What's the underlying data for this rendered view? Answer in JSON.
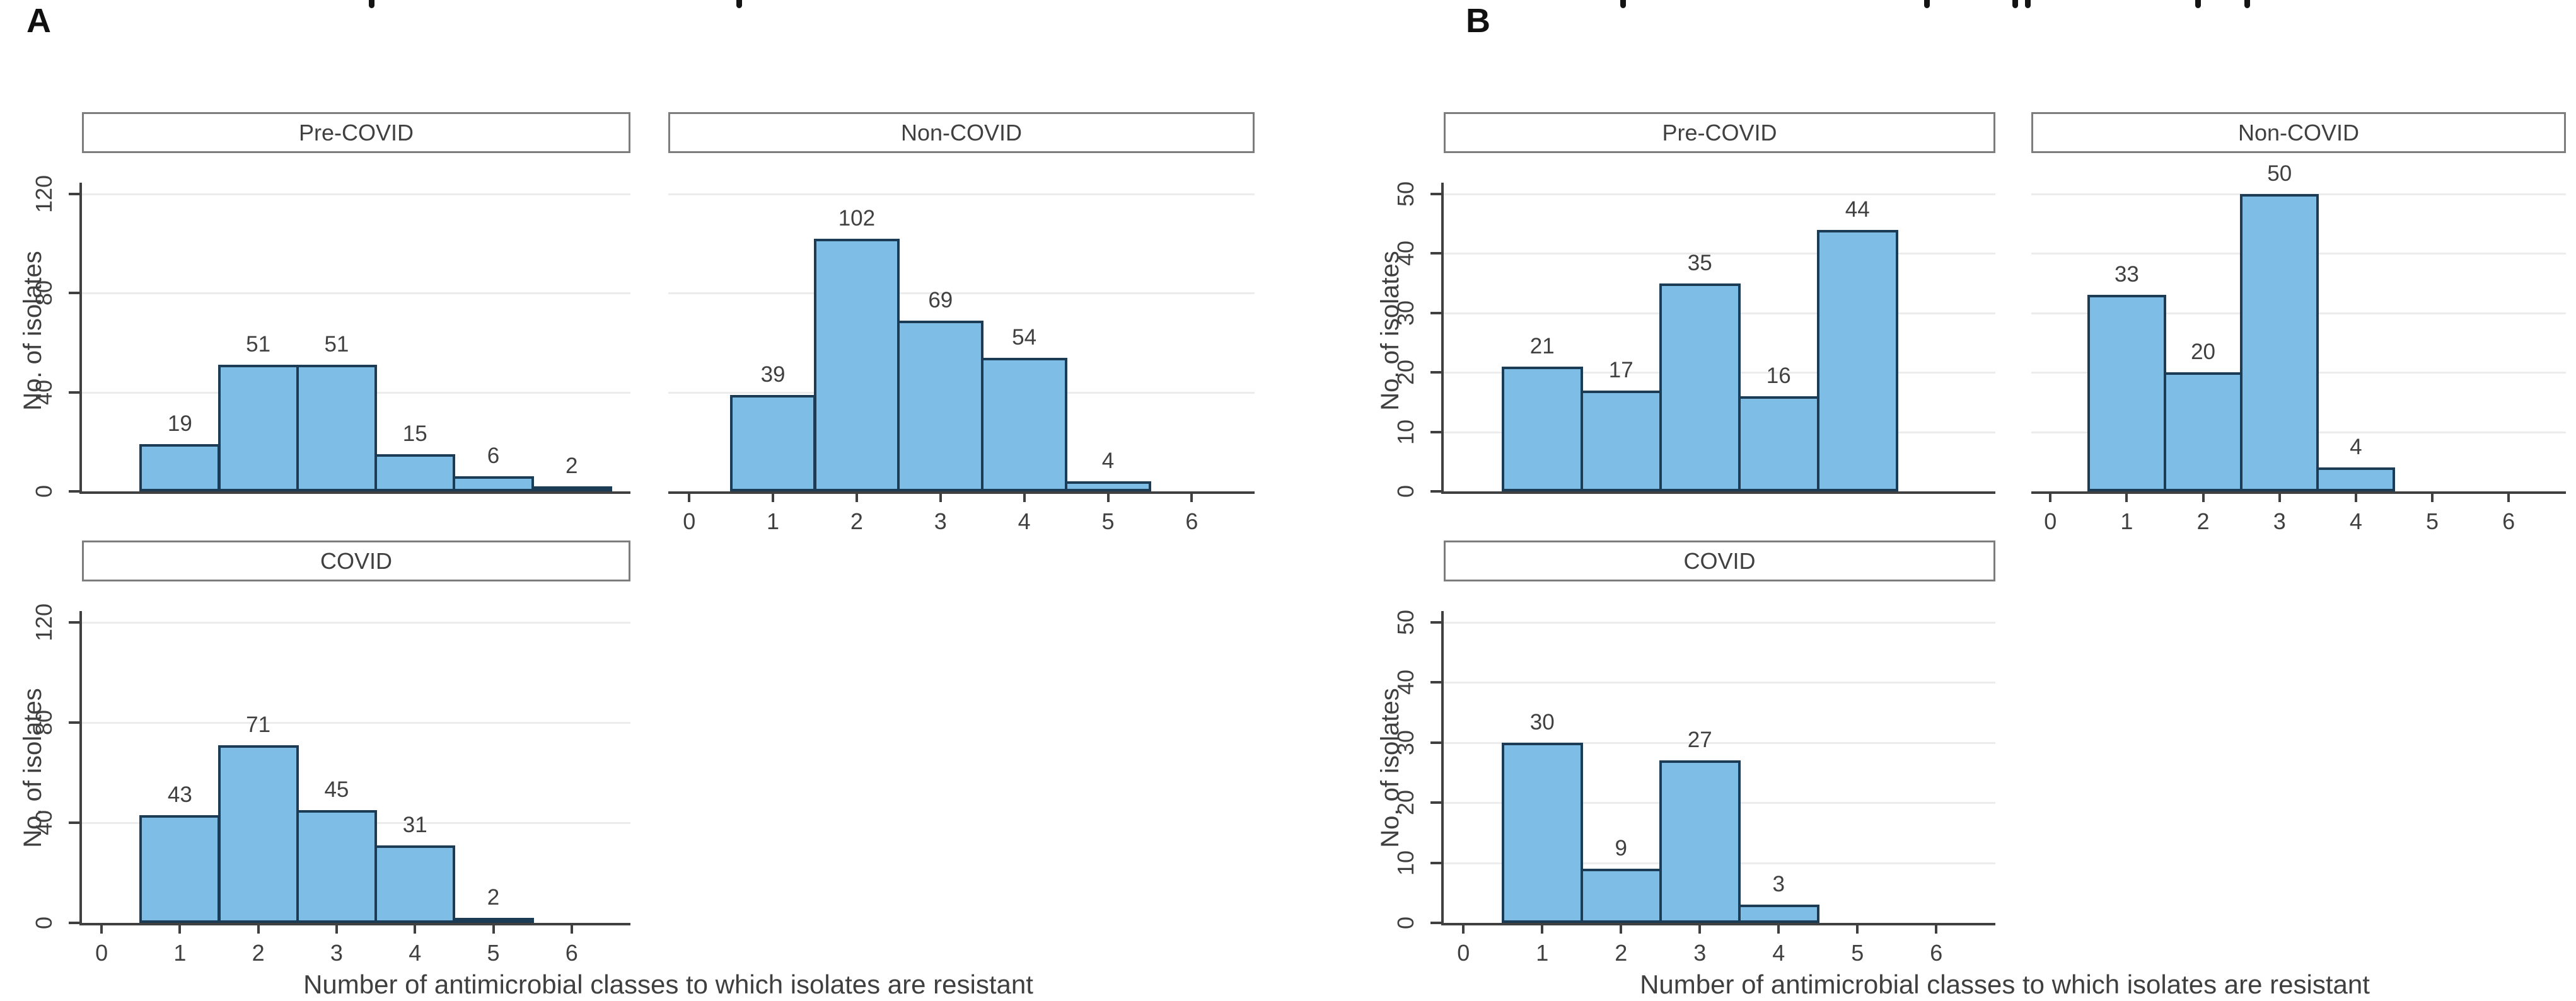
{
  "figure": {
    "background": "#ffffff",
    "top_fragments_note": "illegible remnants of a cropped-off caption line along the top edge",
    "top_fragment_x_positions": [
      585,
      1168,
      2570,
      3052,
      3192,
      3212,
      3482,
      3560
    ]
  },
  "colors": {
    "bar_fill": "#7ebee6",
    "bar_border": "#1c3c55",
    "axis": "#404040",
    "gridline": "#ececec",
    "title_box_border": "#7d7d7d",
    "text": "#404040"
  },
  "chart_data": [
    {
      "panel": "A",
      "type": "bar",
      "title": "",
      "xlabel": "Number of antimicrobial classes to which isolates are resistant",
      "ylabel": "No. of isolates",
      "xticks": [
        0,
        1,
        2,
        3,
        4,
        5,
        6
      ],
      "xlim": [
        -0.25,
        6.75
      ],
      "ylim": [
        0,
        120
      ],
      "yticks": [
        0,
        40,
        80,
        120
      ],
      "grid": true,
      "legend": "none",
      "subplots": [
        {
          "title": "Pre-COVID",
          "categories": [
            1,
            2,
            3,
            4,
            5,
            6
          ],
          "values": [
            19,
            51,
            51,
            15,
            6,
            2
          ],
          "show_xticklabels": false,
          "show_yticklabels": true
        },
        {
          "title": "Non-COVID",
          "categories": [
            1,
            2,
            3,
            4,
            5
          ],
          "values": [
            39,
            102,
            69,
            54,
            4
          ],
          "show_xticklabels": true,
          "show_yticklabels": false
        },
        {
          "title": "COVID",
          "categories": [
            1,
            2,
            3,
            4,
            5
          ],
          "values": [
            43,
            71,
            45,
            31,
            2
          ],
          "show_xticklabels": true,
          "show_yticklabels": true
        }
      ]
    },
    {
      "panel": "B",
      "type": "bar",
      "title": "",
      "xlabel": "Number of antimicrobial classes to which isolates are resistant",
      "ylabel": "No. of isolates",
      "xticks": [
        0,
        1,
        2,
        3,
        4,
        5,
        6
      ],
      "xlim": [
        -0.25,
        6.75
      ],
      "ylim": [
        0,
        50
      ],
      "yticks": [
        0,
        10,
        20,
        30,
        40,
        50
      ],
      "grid": true,
      "legend": "none",
      "subplots": [
        {
          "title": "Pre-COVID",
          "categories": [
            1,
            2,
            3,
            4,
            5
          ],
          "values": [
            21,
            17,
            35,
            16,
            44
          ],
          "show_xticklabels": false,
          "show_yticklabels": true
        },
        {
          "title": "Non-COVID",
          "categories": [
            1,
            2,
            3,
            4
          ],
          "values": [
            33,
            20,
            50,
            4
          ],
          "show_xticklabels": true,
          "show_yticklabels": false
        },
        {
          "title": "COVID",
          "categories": [
            1,
            2,
            3,
            4
          ],
          "values": [
            30,
            9,
            27,
            3
          ],
          "show_xticklabels": true,
          "show_yticklabels": true
        }
      ]
    }
  ]
}
